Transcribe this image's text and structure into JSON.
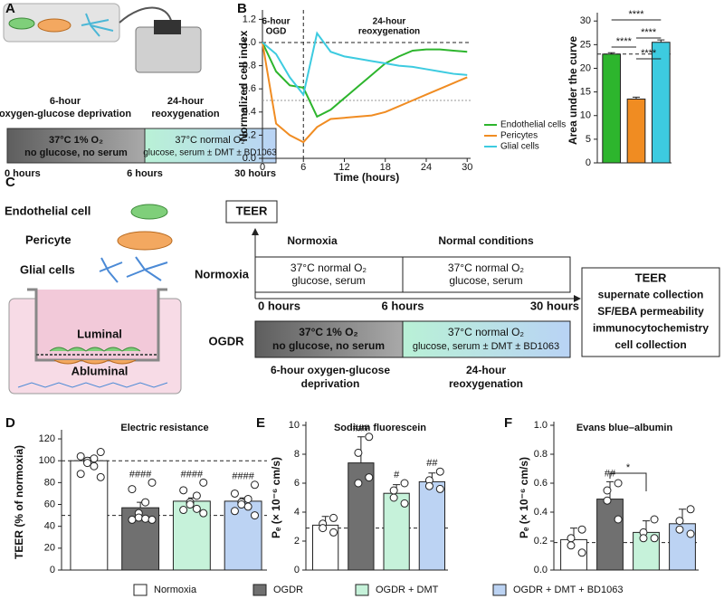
{
  "panel_labels": [
    "A",
    "B",
    "C",
    "D",
    "E",
    "F"
  ],
  "diagram_a": {
    "phases": [
      [
        "6-hour",
        "oxygen-glucose deprivation"
      ],
      [
        "24-hour",
        "reoxygenation"
      ]
    ],
    "ogd_box": [
      "37°C 1% O₂",
      "no glucose, no serum"
    ],
    "reox_box": [
      "37°C normal O₂",
      "glucose, serum ± DMT ± BD1063"
    ],
    "times": [
      "0 hours",
      "6 hours",
      "30 hours"
    ]
  },
  "diagram_c": {
    "cells": [
      "Endothelial cell",
      "Pericyte",
      "Glial cells"
    ],
    "compartments": [
      "Luminal",
      "Abluminal"
    ],
    "teer": "TEER",
    "conditions": [
      "Normoxia",
      "Normal conditions"
    ],
    "rows": [
      "Normoxia",
      "OGDR"
    ],
    "normoxia_boxes": [
      [
        "37°C normal O₂",
        "glucose, serum"
      ],
      [
        "37°C normal O₂",
        "glucose, serum"
      ]
    ],
    "ogdr_boxes": [
      [
        "37°C 1% O₂",
        "no glucose, no serum"
      ],
      [
        "37°C normal O₂",
        "glucose, serum ± DMT ± BD1063"
      ]
    ],
    "times": [
      "0 hours",
      "6 hours",
      "30 hours"
    ],
    "phases": [
      [
        "6-hour oxygen-glucose",
        "deprivation"
      ],
      [
        "24-hour",
        "reoxygenation"
      ]
    ],
    "outcomes": [
      "TEER",
      "supernate collection",
      "SF/EBA permeability",
      "immunocytochemistry",
      "cell collection"
    ]
  },
  "shared_legend": {
    "items": [
      "Normoxia",
      "OGDR",
      "OGDR + DMT",
      "OGDR + DMT + BD1063"
    ],
    "colors": [
      "#ffffff",
      "#707070",
      "#c6f2da",
      "#bcd3f3"
    ]
  },
  "chart_data": [
    {
      "type": "line",
      "y_label": "Normalized cell index",
      "x_label": "Time (hours)",
      "x": [
        0,
        2,
        4,
        6,
        8,
        10,
        12,
        14,
        16,
        18,
        20,
        22,
        24,
        26,
        28,
        30
      ],
      "series": [
        {
          "name": "Endothelial cells",
          "color": "#2db52d",
          "values": [
            1.0,
            0.75,
            0.63,
            0.61,
            0.36,
            0.42,
            0.52,
            0.62,
            0.72,
            0.82,
            0.88,
            0.93,
            0.94,
            0.94,
            0.93,
            0.92
          ]
        },
        {
          "name": "Pericytes",
          "color": "#f08c22",
          "values": [
            1.0,
            0.3,
            0.2,
            0.14,
            0.27,
            0.34,
            0.35,
            0.36,
            0.37,
            0.4,
            0.45,
            0.5,
            0.55,
            0.6,
            0.65,
            0.7
          ]
        },
        {
          "name": "Glial cells",
          "color": "#3dcbe0",
          "values": [
            1.0,
            0.9,
            0.7,
            0.55,
            1.08,
            0.92,
            0.88,
            0.86,
            0.84,
            0.82,
            0.8,
            0.79,
            0.77,
            0.75,
            0.73,
            0.72
          ]
        }
      ],
      "annotations": [
        [
          "6-hour",
          "OGD"
        ],
        [
          "24-hour",
          "reoxygenation"
        ]
      ],
      "reference_lines": [
        1.0,
        0.5
      ],
      "vertical_lines": [
        6
      ],
      "xlim": [
        0,
        30.5
      ],
      "xticks": [
        0,
        6,
        12,
        18,
        24,
        30
      ],
      "ylim": [
        0,
        1.25
      ],
      "yticks": [
        {
          "value": 0,
          "label": "0.0"
        },
        0.2,
        0.4,
        0.6,
        0.8,
        {
          "value": 1,
          "label": "1.0"
        },
        1.2
      ],
      "legend": "lower right"
    },
    {
      "type": "bar",
      "y_label": "Area under the curve",
      "categories": [
        null,
        null,
        null
      ],
      "values": [
        23,
        13.5,
        25.5
      ],
      "errors": [
        0.3,
        0.4,
        0.5
      ],
      "colors": [
        "#2db52d",
        "#f08c22",
        "#3dcbe0"
      ],
      "reference_lines": [
        23
      ],
      "comparison_labels": [
        "****",
        "****",
        "****",
        "****"
      ],
      "ylim": [
        0,
        31
      ],
      "yticks": [
        0,
        5,
        10,
        15,
        20,
        25,
        30
      ]
    },
    {
      "type": "bar",
      "title": "Electric resistance",
      "y_label": "TEER (% of normoxia)",
      "categories": [
        "Normoxia",
        "OGDR",
        "OGDR + DMT",
        "OGDR + DMT + BD1063"
      ],
      "values": [
        100,
        57,
        63,
        63
      ],
      "errors": [
        3,
        5,
        3,
        3
      ],
      "points": [
        [
          108,
          104,
          102,
          100,
          98,
          95,
          88,
          85
        ],
        [
          80,
          74,
          62,
          52,
          48,
          47,
          46,
          46
        ],
        [
          80,
          73,
          68,
          62,
          60,
          56,
          55,
          52
        ],
        [
          78,
          70,
          65,
          62,
          60,
          58,
          54,
          50
        ]
      ],
      "colors": [
        "#ffffff",
        "#707070",
        "#c6f2da",
        "#bcd3f3"
      ],
      "significance": [
        null,
        "####",
        "####",
        "####"
      ],
      "reference_lines": [
        100,
        50
      ],
      "ylim": [
        0,
        125
      ],
      "yticks": [
        0,
        20,
        40,
        60,
        80,
        100,
        120
      ]
    },
    {
      "type": "bar",
      "title": "Sodium fluorescein",
      "y_label": "Pₑ (× 10⁻⁶ cm/s)",
      "categories": [
        "Normoxia",
        "OGDR",
        "OGDR + DMT",
        "OGDR + DMT + BD1063"
      ],
      "values": [
        3.1,
        7.4,
        5.3,
        6.1
      ],
      "errors": [
        0.6,
        1.8,
        0.6,
        0.6
      ],
      "points": [
        [
          3.6,
          3.2,
          2.9,
          2.6
        ],
        [
          9.2,
          8.1,
          6.0,
          6.4
        ],
        [
          6.0,
          5.5,
          5.0,
          4.6
        ],
        [
          6.8,
          6.2,
          5.8,
          5.6
        ]
      ],
      "colors": [
        "#ffffff",
        "#707070",
        "#c6f2da",
        "#bcd3f3"
      ],
      "significance": [
        null,
        "###",
        "#",
        "##"
      ],
      "reference_lines": [
        2.9
      ],
      "ylim": [
        0,
        10
      ],
      "yticks": [
        0,
        2,
        4,
        6,
        8,
        10
      ]
    },
    {
      "type": "bar",
      "title": "Evans blue–albumin",
      "y_label": "Pₑ (× 10⁻⁶ cm/s)",
      "categories": [
        "Normoxia",
        "OGDR",
        "OGDR + DMT",
        "OGDR + DMT + BD1063"
      ],
      "values": [
        0.21,
        0.49,
        0.26,
        0.32
      ],
      "errors": [
        0.08,
        0.12,
        0.08,
        0.1
      ],
      "points": [
        [
          0.28,
          0.22,
          0.17,
          0.12
        ],
        [
          0.6,
          0.55,
          0.48,
          0.35
        ],
        [
          0.35,
          0.26,
          0.22,
          0.22
        ],
        [
          0.42,
          0.34,
          0.28,
          0.25
        ]
      ],
      "colors": [
        "#ffffff",
        "#707070",
        "#c6f2da",
        "#bcd3f3"
      ],
      "significance": [
        null,
        "##",
        null,
        null
      ],
      "comparison_labels": [
        "*"
      ],
      "reference_lines": [
        0.19
      ],
      "ylim": [
        0,
        1
      ],
      "yticks": [
        {
          "value": 0,
          "label": "0.0"
        },
        0.2,
        0.4,
        0.6,
        0.8,
        {
          "value": 1,
          "label": "1.0"
        }
      ]
    }
  ]
}
